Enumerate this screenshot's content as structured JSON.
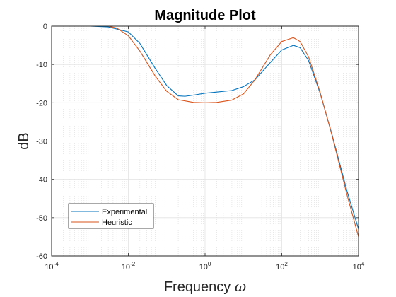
{
  "chart_data": {
    "type": "line",
    "title": "Magnitude Plot",
    "xlabel": "Frequency",
    "xlabel_symbol": "ω",
    "ylabel": "dB",
    "x_scale": "log",
    "xlim": [
      0.0001,
      10000
    ],
    "ylim": [
      -60,
      0
    ],
    "x_ticks": [
      {
        "base": "10",
        "exp": "-4",
        "value": 0.0001
      },
      {
        "base": "10",
        "exp": "-2",
        "value": 0.01
      },
      {
        "base": "10",
        "exp": "0",
        "value": 1
      },
      {
        "base": "10",
        "exp": "2",
        "value": 100
      },
      {
        "base": "10",
        "exp": "4",
        "value": 10000
      }
    ],
    "y_ticks": [
      {
        "label": "0",
        "value": 0
      },
      {
        "label": "-10",
        "value": -10
      },
      {
        "label": "-20",
        "value": -20
      },
      {
        "label": "-30",
        "value": -30
      },
      {
        "label": "-40",
        "value": -40
      },
      {
        "label": "-50",
        "value": -50
      },
      {
        "label": "-60",
        "value": -60
      }
    ],
    "grid": true,
    "minor_grid": true,
    "legend_position": "bottom-left",
    "series": [
      {
        "name": "Experimental",
        "color": "#0072BD",
        "x": [
          0.0001,
          0.001,
          0.003,
          0.01,
          0.02,
          0.05,
          0.1,
          0.2,
          0.3,
          0.5,
          1,
          2,
          5,
          10,
          20,
          50,
          100,
          200,
          300,
          500,
          1000,
          2000,
          5000,
          10000
        ],
        "y": [
          0,
          0,
          -0.2,
          -1.5,
          -4.5,
          -11,
          -15.5,
          -18.2,
          -18.3,
          -18,
          -17.5,
          -17.2,
          -16.8,
          -15.8,
          -14,
          -9.5,
          -6.2,
          -5,
          -5.6,
          -9,
          -17.5,
          -28,
          -43,
          -53
        ]
      },
      {
        "name": "Heuristic",
        "color": "#D95319",
        "x": [
          0.0001,
          0.001,
          0.003,
          0.005,
          0.01,
          0.02,
          0.05,
          0.1,
          0.2,
          0.5,
          1,
          2,
          5,
          10,
          20,
          50,
          100,
          200,
          300,
          500,
          1000,
          2000,
          5000,
          10000
        ],
        "y": [
          0,
          0,
          0,
          -0.5,
          -2.5,
          -6.5,
          -13,
          -17,
          -19.2,
          -19.9,
          -20,
          -19.9,
          -19.3,
          -17.7,
          -14,
          -7.5,
          -4,
          -3,
          -4,
          -8,
          -17.3,
          -28.2,
          -44,
          -55
        ]
      }
    ]
  }
}
